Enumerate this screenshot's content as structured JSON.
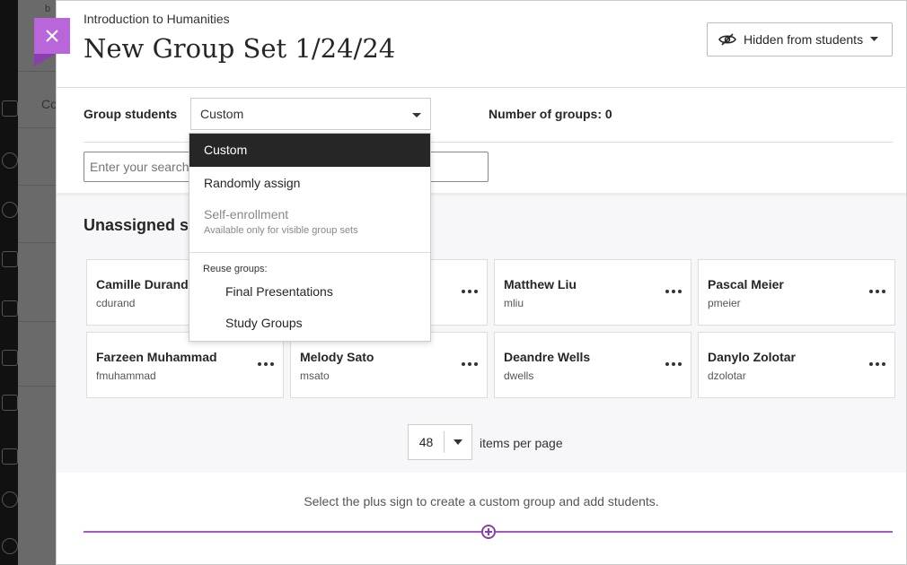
{
  "background": {
    "fragments": [
      "b",
      "Co"
    ]
  },
  "panel": {
    "course": "Introduction to Humanities",
    "title": "New Group Set 1/24/24",
    "visibility_label": "Hidden from students",
    "group_students_label": "Group students",
    "group_students_value": "Custom",
    "number_of_groups": "Number of groups: 0",
    "search_placeholder": "Enter your search",
    "unassigned_heading": "Unassigned students",
    "students": [
      {
        "name": "Camille Durand",
        "username": "cdurand"
      },
      {
        "name": "",
        "username": ""
      },
      {
        "name": "Matthew Liu",
        "username": "mliu"
      },
      {
        "name": "Pascal Meier",
        "username": "pmeier"
      },
      {
        "name": "Farzeen Muhammad",
        "username": "fmuhammad"
      },
      {
        "name": "Melody Sato",
        "username": "msato"
      },
      {
        "name": "Deandre Wells",
        "username": "dwells"
      },
      {
        "name": "Danylo Zolotar",
        "username": "dzolotar"
      }
    ],
    "items_per_page": "48",
    "items_per_page_label": "items per page",
    "hint": "Select the plus sign to create a custom group and add students.",
    "accent_color": "#b866d9"
  },
  "dropdown": {
    "options": [
      "Custom",
      "Randomly assign"
    ],
    "disabled_option": "Self-enrollment",
    "disabled_note": "Available only for visible group sets",
    "reuse_label": "Reuse groups:",
    "reuse_options": [
      "Final Presentations",
      "Study Groups"
    ]
  }
}
